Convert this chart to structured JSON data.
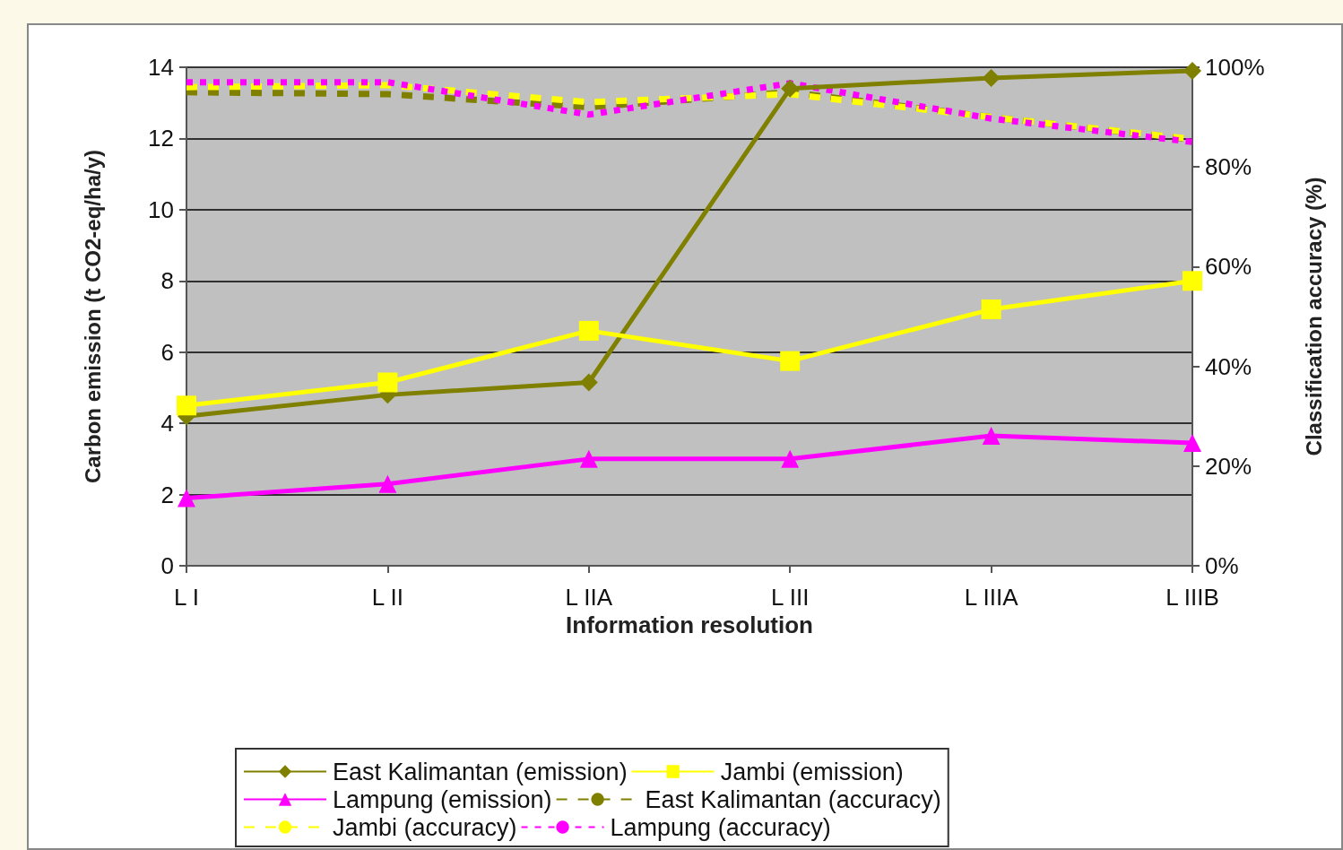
{
  "chart_data": {
    "type": "line",
    "xlabel": "Information resolution",
    "ylabel": "Carbon emission (t CO2-eq/ha/y)",
    "y2label": "Classification accuracy (%)",
    "categories": [
      "L I",
      "L II",
      "L IIA",
      "L III",
      "L IIIA",
      "L IIIB"
    ],
    "ylim": [
      0,
      14
    ],
    "yticks": [
      0,
      2,
      4,
      6,
      8,
      10,
      12,
      14
    ],
    "y2lim": [
      0,
      100
    ],
    "y2ticks": [
      {
        "value": 0,
        "label": "0%"
      },
      {
        "value": 20,
        "label": "20%"
      },
      {
        "value": 40,
        "label": "40%"
      },
      {
        "value": 60,
        "label": "60%"
      },
      {
        "value": 80,
        "label": "80%"
      },
      {
        "value": 100,
        "label": "100%"
      }
    ],
    "grid": "y",
    "legend": "bottom",
    "series": [
      {
        "name": "East Kalimantan (emission)",
        "color": "#808000",
        "marker": "diamond",
        "line_style": "solid",
        "values": [
          4.2,
          4.8,
          5.15,
          13.4,
          13.7,
          13.9
        ]
      },
      {
        "name": "Jambi (emission)",
        "color": "#ffff00",
        "marker": "square",
        "line_style": "solid",
        "values": [
          4.5,
          5.15,
          6.6,
          5.75,
          7.2,
          8.0
        ]
      },
      {
        "name": "Lampung (emission)",
        "color": "#ff00ff",
        "marker": "triangle",
        "line_style": "solid",
        "values": [
          1.9,
          2.3,
          3.0,
          3.0,
          3.65,
          3.45
        ]
      },
      {
        "name": "East Kalimantan (accuracy)",
        "color": "#808000",
        "marker": "none",
        "line_style": "dashed",
        "axis": "y2",
        "values": [
          95,
          94.6,
          92,
          95,
          90,
          85.5
        ]
      },
      {
        "name": "Jambi (accuracy)",
        "color": "#ffff00",
        "marker": "none",
        "line_style": "dashed",
        "axis": "y2",
        "values": [
          96,
          96.4,
          93,
          94.6,
          90,
          85.6
        ]
      },
      {
        "name": "Lampung (accuracy)",
        "color": "#ff00ff",
        "marker": "none",
        "line_style": "dotted",
        "axis": "y2",
        "values": [
          97,
          97,
          90.5,
          96.8,
          89.7,
          85
        ]
      }
    ]
  }
}
